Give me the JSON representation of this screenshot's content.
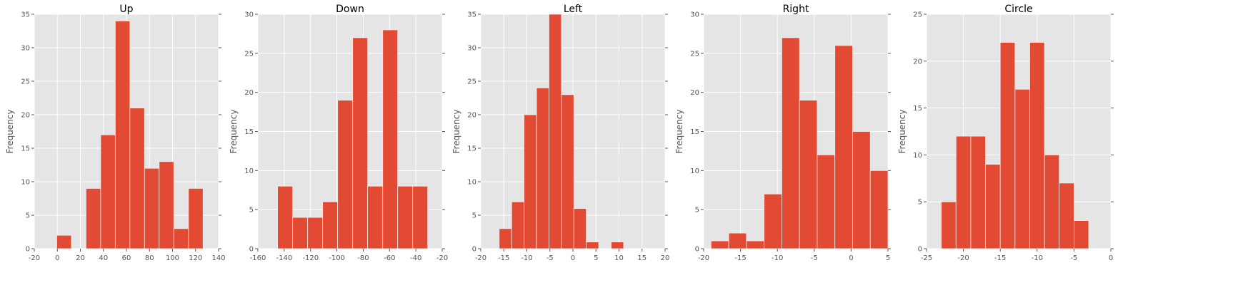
{
  "chart_data": [
    {
      "type": "bar",
      "title": "Up",
      "xlabel": "",
      "ylabel": "Frequency",
      "xlim": [
        -20,
        140
      ],
      "ylim": [
        0,
        35
      ],
      "xticks": [
        -20,
        0,
        20,
        40,
        60,
        80,
        100,
        120,
        140
      ],
      "yticks": [
        0,
        5,
        10,
        15,
        20,
        25,
        30,
        35
      ],
      "grid": true,
      "bins": [
        {
          "x0": -0.5,
          "x1": 12.2,
          "count": 2
        },
        {
          "x0": 24.9,
          "x1": 37.6,
          "count": 9
        },
        {
          "x0": 37.6,
          "x1": 50.3,
          "count": 17
        },
        {
          "x0": 50.3,
          "x1": 63.0,
          "count": 34
        },
        {
          "x0": 63.0,
          "x1": 75.7,
          "count": 21
        },
        {
          "x0": 75.7,
          "x1": 88.4,
          "count": 12
        },
        {
          "x0": 88.4,
          "x1": 101.1,
          "count": 13
        },
        {
          "x0": 101.1,
          "x1": 113.8,
          "count": 3
        },
        {
          "x0": 113.8,
          "x1": 126.5,
          "count": 9
        }
      ]
    },
    {
      "type": "bar",
      "title": "Down",
      "xlabel": "",
      "ylabel": "Frequency",
      "xlim": [
        -160,
        -20
      ],
      "ylim": [
        0,
        30
      ],
      "xticks": [
        -160,
        -140,
        -120,
        -100,
        -80,
        -60,
        -40,
        -20
      ],
      "yticks": [
        0,
        5,
        10,
        15,
        20,
        25,
        30
      ],
      "grid": true,
      "bins": [
        {
          "x0": -145.0,
          "x1": -133.6,
          "count": 8
        },
        {
          "x0": -133.6,
          "x1": -122.2,
          "count": 4
        },
        {
          "x0": -122.2,
          "x1": -110.8,
          "count": 4
        },
        {
          "x0": -110.8,
          "x1": -99.4,
          "count": 6
        },
        {
          "x0": -99.4,
          "x1": -88.0,
          "count": 19
        },
        {
          "x0": -88.0,
          "x1": -76.6,
          "count": 27
        },
        {
          "x0": -76.6,
          "x1": -65.2,
          "count": 8
        },
        {
          "x0": -65.2,
          "x1": -53.8,
          "count": 28
        },
        {
          "x0": -53.8,
          "x1": -42.4,
          "count": 8
        },
        {
          "x0": -42.4,
          "x1": -31.0,
          "count": 8
        }
      ]
    },
    {
      "type": "bar",
      "title": "Left",
      "xlabel": "",
      "ylabel": "Frequency",
      "xlim": [
        -20,
        20
      ],
      "ylim": [
        0,
        35
      ],
      "xticks": [
        -20,
        -15,
        -10,
        -5,
        0,
        5,
        10,
        15,
        20
      ],
      "yticks": [
        0,
        5,
        10,
        15,
        20,
        25,
        30,
        35
      ],
      "grid": true,
      "bins": [
        {
          "x0": -16.0,
          "x1": -13.3,
          "count": 3
        },
        {
          "x0": -13.3,
          "x1": -10.6,
          "count": 7
        },
        {
          "x0": -10.6,
          "x1": -7.9,
          "count": 20
        },
        {
          "x0": -7.9,
          "x1": -5.2,
          "count": 24
        },
        {
          "x0": -5.2,
          "x1": -2.5,
          "count": 35
        },
        {
          "x0": -2.5,
          "x1": 0.2,
          "count": 23
        },
        {
          "x0": 0.2,
          "x1": 2.9,
          "count": 6
        },
        {
          "x0": 2.9,
          "x1": 5.6,
          "count": 1
        },
        {
          "x0": 5.6,
          "x1": 8.3,
          "count": 0
        },
        {
          "x0": 8.3,
          "x1": 11.0,
          "count": 1
        }
      ]
    },
    {
      "type": "bar",
      "title": "Right",
      "xlabel": "",
      "ylabel": "Frequency",
      "xlim": [
        -20,
        5
      ],
      "ylim": [
        0,
        30
      ],
      "xticks": [
        -20,
        -15,
        -10,
        -5,
        0,
        5
      ],
      "yticks": [
        0,
        5,
        10,
        15,
        20,
        25,
        30
      ],
      "grid": true,
      "bins": [
        {
          "x0": -19.0,
          "x1": -16.6,
          "count": 1
        },
        {
          "x0": -16.6,
          "x1": -14.2,
          "count": 2
        },
        {
          "x0": -14.2,
          "x1": -11.8,
          "count": 1
        },
        {
          "x0": -11.8,
          "x1": -9.4,
          "count": 7
        },
        {
          "x0": -9.4,
          "x1": -7.0,
          "count": 27
        },
        {
          "x0": -7.0,
          "x1": -4.6,
          "count": 19
        },
        {
          "x0": -4.6,
          "x1": -2.2,
          "count": 12
        },
        {
          "x0": -2.2,
          "x1": 0.2,
          "count": 26
        },
        {
          "x0": 0.2,
          "x1": 2.6,
          "count": 15
        },
        {
          "x0": 2.6,
          "x1": 5.0,
          "count": 10
        }
      ]
    },
    {
      "type": "bar",
      "title": "Circle",
      "xlabel": "",
      "ylabel": "Frequency",
      "xlim": [
        -25,
        0
      ],
      "ylim": [
        0,
        25
      ],
      "xticks": [
        -25,
        -20,
        -15,
        -10,
        -5,
        0
      ],
      "yticks": [
        0,
        5,
        10,
        15,
        20,
        25
      ],
      "grid": true,
      "bins": [
        {
          "x0": -23.0,
          "x1": -21.0,
          "count": 5
        },
        {
          "x0": -21.0,
          "x1": -19.0,
          "count": 12
        },
        {
          "x0": -19.0,
          "x1": -17.0,
          "count": 12
        },
        {
          "x0": -17.0,
          "x1": -15.0,
          "count": 9
        },
        {
          "x0": -15.0,
          "x1": -13.0,
          "count": 22
        },
        {
          "x0": -13.0,
          "x1": -11.0,
          "count": 17
        },
        {
          "x0": -11.0,
          "x1": -9.0,
          "count": 22
        },
        {
          "x0": -9.0,
          "x1": -7.0,
          "count": 10
        },
        {
          "x0": -7.0,
          "x1": -5.0,
          "count": 7
        },
        {
          "x0": -5.0,
          "x1": -3.0,
          "count": 3
        }
      ]
    }
  ],
  "colors": {
    "bar_fill": "#E24A33",
    "bar_edge": "#EEEEEE",
    "plot_background": "#E5E5E5",
    "grid": "#FFFFFF"
  }
}
